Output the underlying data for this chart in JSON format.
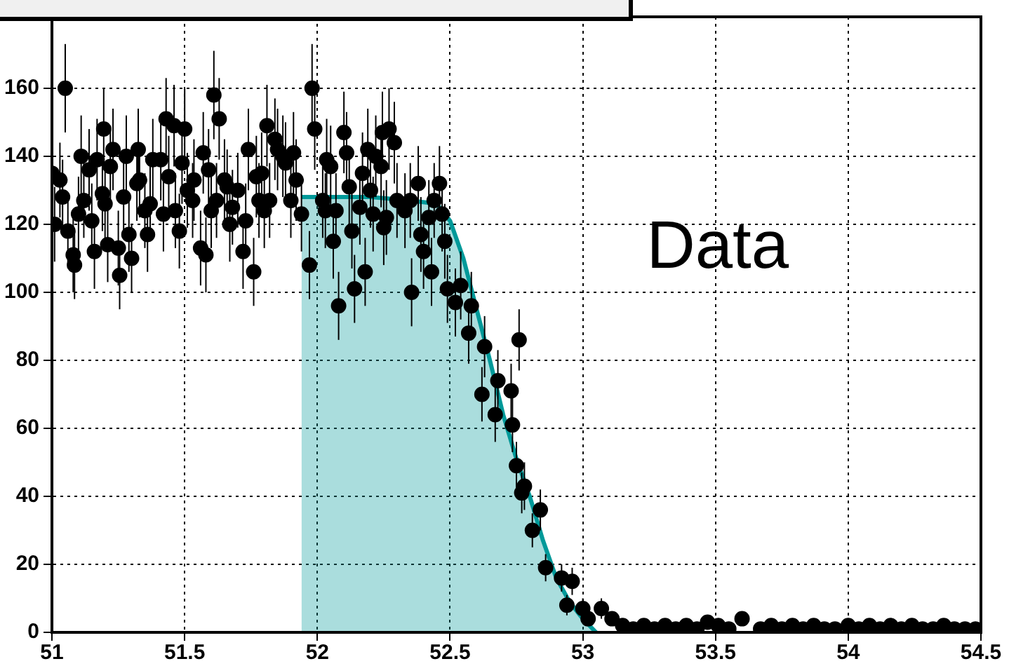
{
  "chart_data": {
    "type": "scatter",
    "xlim": [
      51,
      54.5
    ],
    "xticks": [
      51,
      51.5,
      52,
      52.5,
      53,
      53.5,
      54,
      54.5
    ],
    "ylim": [
      0,
      181
    ],
    "yticks": [
      0,
      20,
      40,
      60,
      80,
      100,
      120,
      140,
      160
    ],
    "grid": true,
    "annotations": [
      "Data"
    ],
    "series": [
      {
        "marker": "circle",
        "color": "#000000",
        "x": [
          51.0,
          51.01,
          51.03,
          51.04,
          51.05,
          51.06,
          51.08,
          51.085,
          51.1,
          51.11,
          51.12,
          51.14,
          51.15,
          51.16,
          51.17,
          51.19,
          51.195,
          51.2,
          51.21,
          51.22,
          51.23,
          51.25,
          51.255,
          51.27,
          51.28,
          51.29,
          51.3,
          51.32,
          51.325,
          51.33,
          51.35,
          51.36,
          51.37,
          51.38,
          51.41,
          51.42,
          51.43,
          51.44,
          51.46,
          51.465,
          51.48,
          51.49,
          51.5,
          51.51,
          51.53,
          51.535,
          51.56,
          51.57,
          51.58,
          51.59,
          51.6,
          51.61,
          51.62,
          51.63,
          51.65,
          51.66,
          51.67,
          51.68,
          51.7,
          51.72,
          51.73,
          51.74,
          51.76,
          51.77,
          51.78,
          51.79,
          51.8,
          51.81,
          51.82,
          51.84,
          51.85,
          51.87,
          51.88,
          51.9,
          51.91,
          51.92,
          51.94,
          51.97,
          51.98,
          51.99,
          52.02,
          52.03,
          52.035,
          52.05,
          52.06,
          52.07,
          52.08,
          52.1,
          52.11,
          52.12,
          52.13,
          52.14,
          52.16,
          52.17,
          52.18,
          52.19,
          52.2,
          52.21,
          52.22,
          52.24,
          52.245,
          52.25,
          52.26,
          52.27,
          52.29,
          52.3,
          52.33,
          52.35,
          52.355,
          52.38,
          52.39,
          52.4,
          52.42,
          52.43,
          52.44,
          52.46,
          52.47,
          52.48,
          52.49,
          52.52,
          52.54,
          52.57,
          52.58,
          52.62,
          52.63,
          52.67,
          52.68,
          52.73,
          52.735,
          52.75,
          52.76,
          52.77,
          52.78,
          52.81,
          52.84,
          52.86,
          52.92,
          52.94,
          52.96,
          53.0,
          53.02,
          53.07,
          53.11,
          53.15,
          53.19,
          53.23,
          53.27,
          53.31,
          53.35,
          53.39,
          53.43,
          53.47,
          53.51,
          53.55,
          53.6,
          53.67,
          53.71,
          53.75,
          53.79,
          53.83,
          53.87,
          53.91,
          53.95,
          54.0,
          54.04,
          54.08,
          54.12,
          54.16,
          54.2,
          54.24,
          54.28,
          54.32,
          54.36,
          54.4,
          54.44,
          54.48
        ],
        "values": [
          135,
          120,
          133,
          128,
          160,
          118,
          111,
          108,
          123,
          140,
          127,
          136,
          121,
          112,
          139,
          129,
          148,
          126,
          114,
          137,
          142,
          113,
          105,
          128,
          140,
          117,
          110,
          132,
          142,
          133,
          124,
          117,
          126,
          139,
          139,
          123,
          151,
          134,
          149,
          124,
          118,
          138,
          148,
          130,
          127,
          133,
          113,
          141,
          111,
          136,
          124,
          158,
          127,
          151,
          133,
          131,
          120,
          125,
          130,
          112,
          121,
          142,
          106,
          134,
          127,
          135,
          124,
          149,
          127,
          145,
          142,
          140,
          138,
          127,
          141,
          133,
          123,
          108,
          160,
          148,
          127,
          124,
          139,
          137,
          115,
          124,
          96,
          147,
          141,
          131,
          118,
          101,
          125,
          135,
          106,
          142,
          130,
          123,
          140,
          137,
          147,
          119,
          122,
          148,
          144,
          127,
          124,
          127,
          100,
          132,
          117,
          112,
          122,
          106,
          127,
          132,
          123,
          115,
          101,
          97,
          102,
          88,
          96,
          70,
          84,
          64,
          74,
          71,
          61,
          49,
          86,
          41,
          43,
          30,
          36,
          19,
          16,
          8,
          15,
          7,
          4,
          7,
          4,
          2,
          1,
          2,
          1,
          2,
          1,
          2,
          1,
          3,
          2,
          1,
          4,
          1,
          2,
          1,
          2,
          1,
          2,
          1,
          1,
          2,
          1,
          2,
          1,
          2,
          1,
          2,
          1,
          1,
          2,
          1,
          1,
          1
        ],
        "errors": [
          11,
          11,
          11,
          11,
          13,
          11,
          11,
          10,
          11,
          12,
          11,
          12,
          11,
          11,
          12,
          11,
          12,
          11,
          11,
          12,
          12,
          11,
          10,
          11,
          12,
          11,
          10,
          11,
          12,
          11,
          11,
          11,
          11,
          12,
          12,
          11,
          12,
          12,
          12,
          11,
          11,
          12,
          12,
          11,
          11,
          12,
          11,
          12,
          11,
          12,
          11,
          13,
          11,
          12,
          12,
          11,
          11,
          11,
          11,
          11,
          11,
          12,
          10,
          12,
          11,
          12,
          11,
          12,
          11,
          12,
          12,
          12,
          12,
          11,
          12,
          12,
          11,
          10,
          13,
          12,
          11,
          11,
          12,
          12,
          11,
          11,
          10,
          12,
          12,
          11,
          11,
          10,
          11,
          12,
          10,
          12,
          11,
          11,
          12,
          12,
          12,
          11,
          11,
          12,
          12,
          11,
          11,
          11,
          10,
          11,
          11,
          11,
          11,
          10,
          11,
          11,
          11,
          11,
          10,
          10,
          10,
          9,
          10,
          8,
          9,
          8,
          9,
          8,
          8,
          7,
          9,
          6,
          7,
          5,
          6,
          4,
          4,
          3,
          4,
          3,
          2,
          3,
          2,
          1,
          1,
          1,
          1,
          1,
          1,
          1,
          1,
          2,
          1,
          1,
          2,
          1,
          1,
          1,
          1,
          1,
          1,
          1,
          1,
          1,
          1,
          1,
          1,
          1,
          1,
          1,
          1,
          1,
          1,
          1,
          1,
          1
        ]
      },
      {
        "type": "area",
        "color": "#009999",
        "x": [
          51.94,
          52.2,
          52.35,
          52.45,
          52.5,
          52.55,
          52.6,
          52.65,
          52.7,
          52.75,
          52.8,
          52.85,
          52.9,
          52.95,
          53.0,
          53.05
        ],
        "values": [
          128,
          128,
          127,
          126,
          121,
          110,
          95,
          80,
          64,
          51,
          40,
          27,
          16,
          9,
          4,
          0
        ]
      }
    ]
  }
}
